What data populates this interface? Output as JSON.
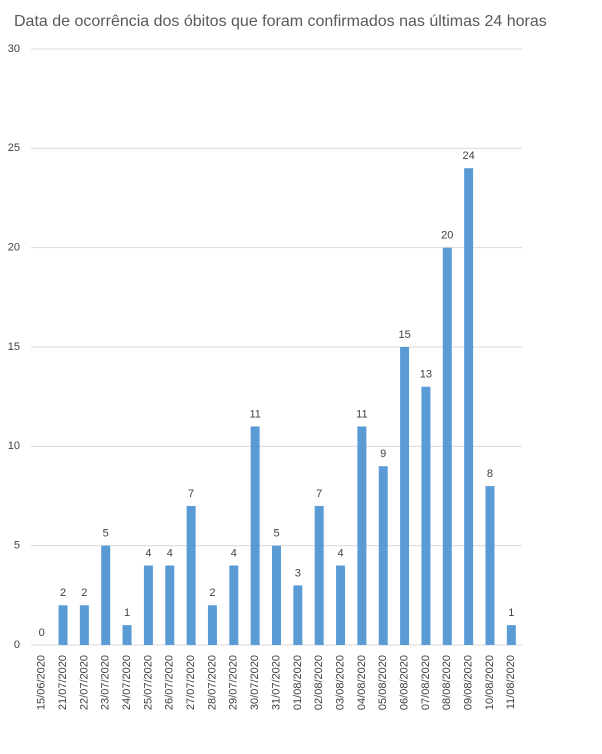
{
  "chart_data": {
    "type": "bar",
    "title": "Data de ocorrência dos óbitos que foram confirmados nas últimas 24 horas",
    "categories": [
      "15/06/2020",
      "21/07/2020",
      "22/07/2020",
      "23/07/2020",
      "24/07/2020",
      "25/07/2020",
      "26/07/2020",
      "27/07/2020",
      "28/07/2020",
      "29/07/2020",
      "30/07/2020",
      "31/07/2020",
      "01/08/2020",
      "02/08/2020",
      "03/08/2020",
      "04/08/2020",
      "05/08/2020",
      "06/08/2020",
      "07/08/2020",
      "08/08/2020",
      "09/08/2020",
      "10/08/2020",
      "11/08/2020"
    ],
    "values": [
      0,
      2,
      2,
      5,
      1,
      4,
      4,
      7,
      2,
      4,
      11,
      5,
      3,
      7,
      4,
      11,
      9,
      15,
      13,
      20,
      24,
      8,
      1
    ],
    "color": "#5b9bd5",
    "ylim": [
      0,
      30
    ],
    "yticks": [
      0,
      5,
      10,
      15,
      20,
      25,
      30
    ],
    "grid": true
  }
}
